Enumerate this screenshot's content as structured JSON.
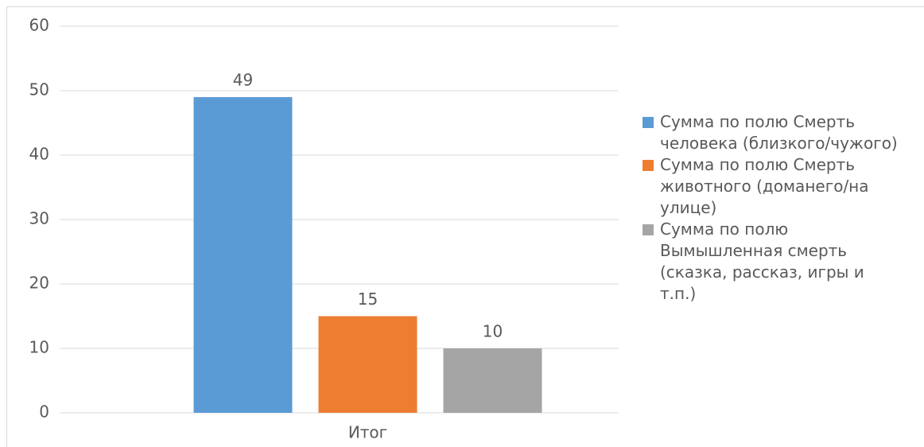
{
  "chart_data": {
    "type": "bar",
    "categories": [
      "Итог"
    ],
    "series": [
      {
        "name": "Сумма по полю Смерть человека (близкого/чужого)",
        "color": "#5b9bd5",
        "values": [
          49
        ]
      },
      {
        "name": "Сумма по полю Смерть животного (доманего/на улице)",
        "color": "#ed7d31",
        "values": [
          15
        ]
      },
      {
        "name": "Сумма по полю Вымышленная смерть (сказка, рассказ, игры и т.п.)",
        "color": "#a5a5a5",
        "values": [
          10
        ]
      }
    ],
    "ylim": [
      0,
      60
    ],
    "yticks": [
      0,
      10,
      20,
      30,
      40,
      50,
      60
    ],
    "grid": true,
    "legend": "right"
  }
}
